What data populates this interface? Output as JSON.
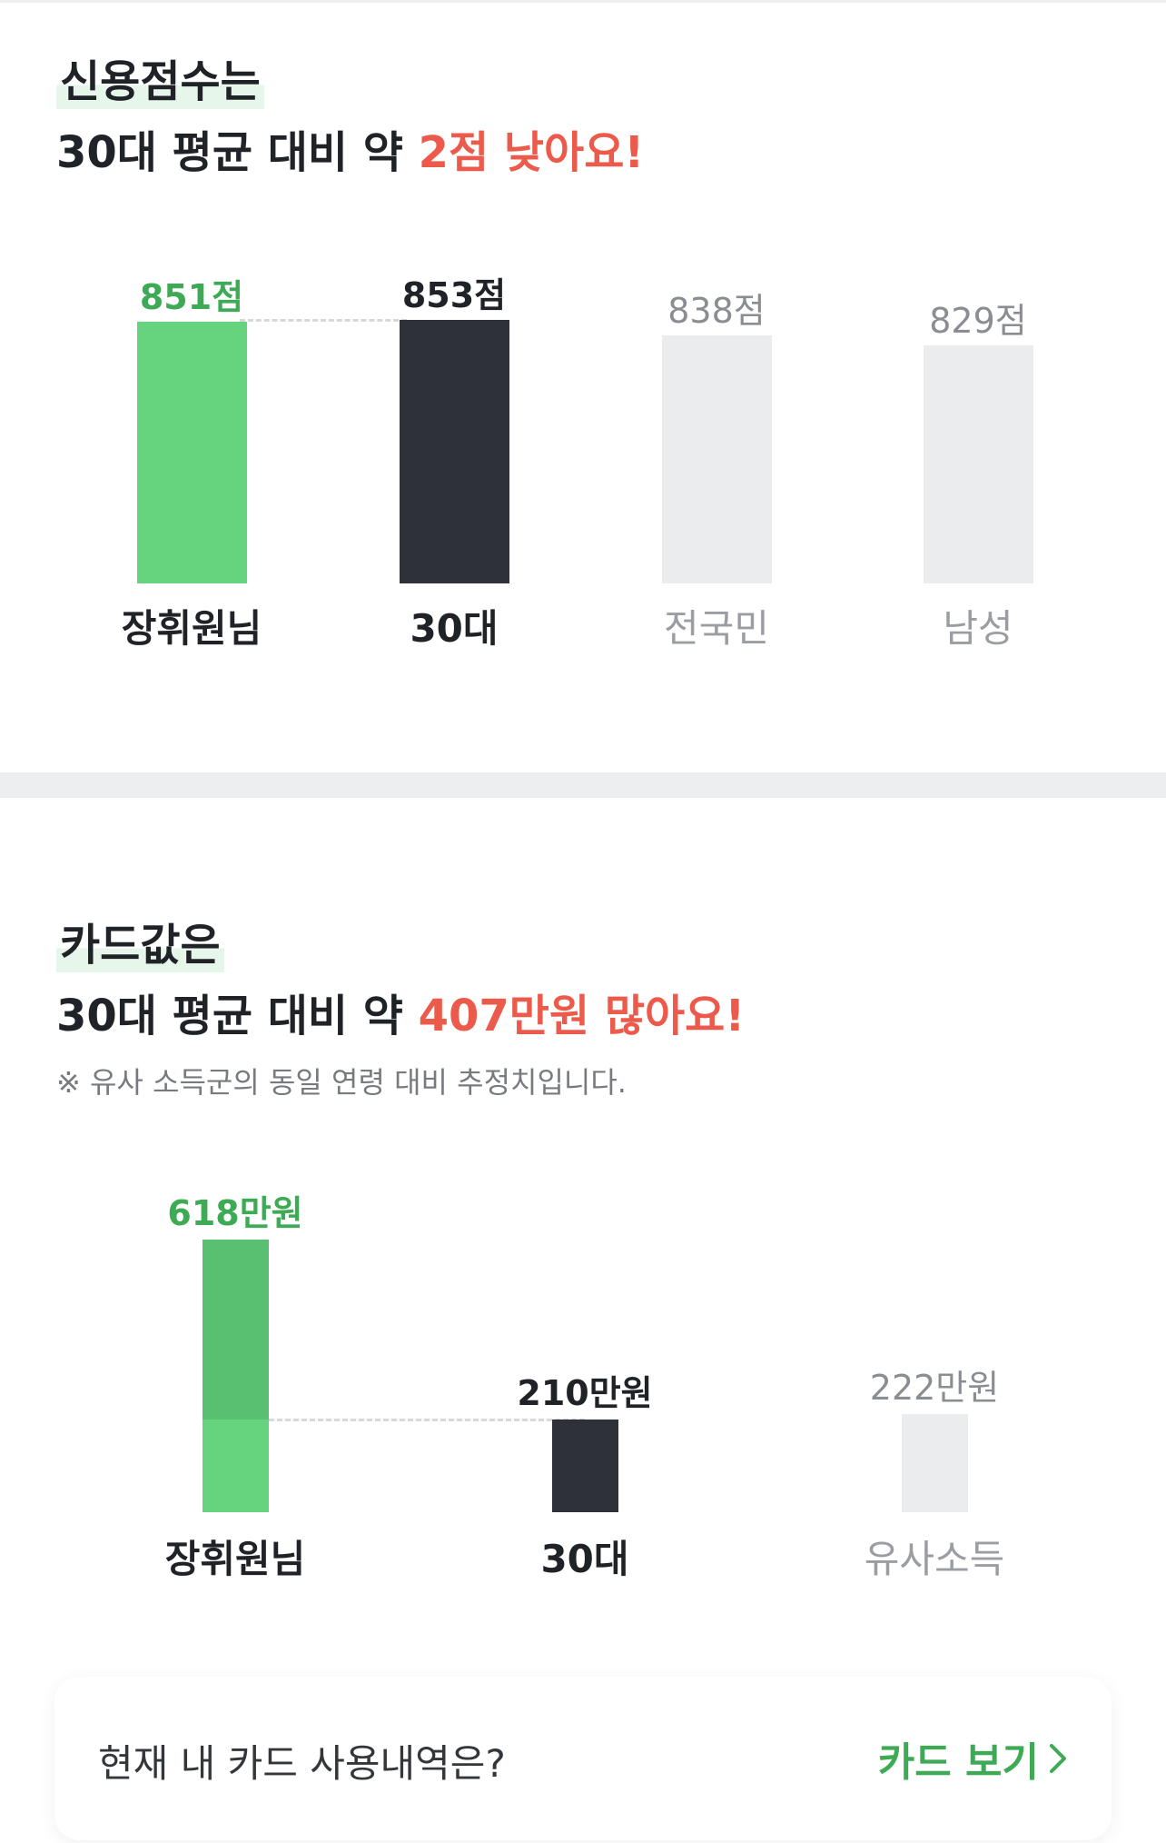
{
  "credit": {
    "kicker": "신용점수는",
    "headline_prefix": "30대 평균 대비 약 ",
    "headline_emph": "2점 낮아요!"
  },
  "spending": {
    "kicker": "카드값은",
    "headline_prefix": "30대 평균 대비 약 ",
    "headline_emph": "407만원 많아요!",
    "note": "※ 유사 소득군의 동일 연령 대비 추정치입니다."
  },
  "cta": {
    "question": "현재 내 카드 사용내역은?",
    "button_label": "카드 보기",
    "button_icon": "chevron-right-icon"
  },
  "colors": {
    "accent_green": "#3eaa55",
    "bar_green": "#66d47e",
    "bar_green_dark": "#58c06e",
    "bar_dark": "#2e3238",
    "bar_gray": "#ebecee",
    "emph_red": "#ec5a4c"
  },
  "chart_data": [
    {
      "type": "bar",
      "title": "",
      "unit": "점",
      "categories": [
        "장휘원님",
        "30대",
        "전국민",
        "남성"
      ],
      "values": [
        851,
        853,
        838,
        829
      ],
      "value_labels": [
        "851점",
        "853점",
        "838점",
        "829점"
      ],
      "highlight": "장휘원님",
      "reference": "30대",
      "ylim": [
        600,
        860
      ],
      "grid": false
    },
    {
      "type": "bar",
      "title": "",
      "unit": "만원",
      "categories": [
        "장휘원님",
        "30대",
        "유사소득"
      ],
      "values": [
        618,
        210,
        222
      ],
      "value_labels": [
        "618만원",
        "210만원",
        "222만원"
      ],
      "highlight": "장휘원님",
      "reference": "30대",
      "ylim": [
        0,
        618
      ],
      "grid": false
    }
  ]
}
